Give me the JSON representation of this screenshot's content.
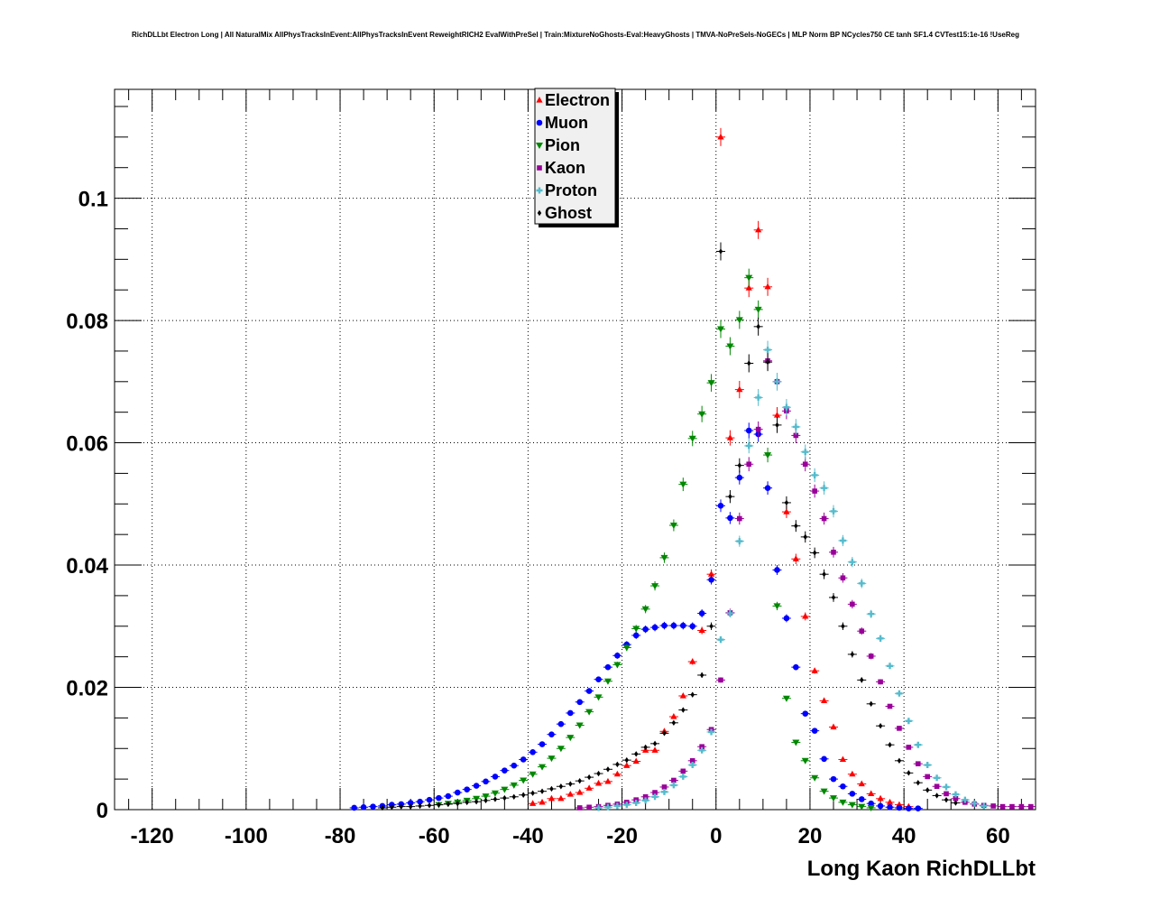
{
  "chart_data": {
    "type": "scatter",
    "title": "RichDLLbt Electron Long | All NaturalMix AllPhysTracksInEvent:AllPhysTracksInEvent ReweightRICH2 EvalWithPreSel | Train:MixtureNoGhosts-Eval:HeavyGhosts | TMVA-NoPreSels-NoGECs | MLP Norm BP NCycles750 CE tanh SF1.4 CVTest15:1e-16 !UseReg",
    "xlabel": "Long Kaon RichDLLbt",
    "ylabel": "",
    "xlim": [
      -128,
      68
    ],
    "ylim": [
      0,
      0.1178
    ],
    "grid": true,
    "legend_position": "top-center",
    "x_ticks": [
      -120,
      -100,
      -80,
      -60,
      -40,
      -20,
      0,
      20,
      40,
      60
    ],
    "x_tick_labels": [
      "-120",
      "-100",
      "-80",
      "-60",
      "-40",
      "-20",
      "0",
      "20",
      "40",
      "60"
    ],
    "y_ticks": [
      0,
      0.02,
      0.04,
      0.06,
      0.08,
      0.1
    ],
    "y_tick_labels": [
      "0",
      "0.02",
      "0.04",
      "0.06",
      "0.08",
      "0.1"
    ],
    "series": [
      {
        "name": "Electron",
        "color": "#ff0000",
        "marker": "triangle-up",
        "points": [
          [
            -39,
            0.001
          ],
          [
            -37,
            0.0012
          ],
          [
            -35,
            0.0018
          ],
          [
            -33,
            0.0018
          ],
          [
            -31,
            0.0025
          ],
          [
            -29,
            0.0028
          ],
          [
            -27,
            0.0035
          ],
          [
            -25,
            0.0043
          ],
          [
            -23,
            0.0046
          ],
          [
            -21,
            0.0058
          ],
          [
            -19,
            0.0072
          ],
          [
            -17,
            0.0079
          ],
          [
            -15,
            0.0097
          ],
          [
            -13,
            0.0097
          ],
          [
            -11,
            0.0128
          ],
          [
            -9,
            0.0152
          ],
          [
            -7,
            0.0186
          ],
          [
            -5,
            0.0242
          ],
          [
            -3,
            0.0293
          ],
          [
            -1,
            0.0385
          ],
          [
            1,
            0.11
          ],
          [
            3,
            0.0608
          ],
          [
            5,
            0.0687
          ],
          [
            7,
            0.0853
          ],
          [
            9,
            0.0948
          ],
          [
            11,
            0.0855
          ],
          [
            13,
            0.0645
          ],
          [
            15,
            0.0487
          ],
          [
            17,
            0.041
          ],
          [
            19,
            0.0316
          ],
          [
            21,
            0.0227
          ],
          [
            23,
            0.0178
          ],
          [
            25,
            0.0135
          ],
          [
            27,
            0.0082
          ],
          [
            29,
            0.0058
          ],
          [
            31,
            0.0042
          ],
          [
            33,
            0.0026
          ],
          [
            35,
            0.0018
          ],
          [
            37,
            0.0012
          ],
          [
            39,
            0.0008
          ],
          [
            41,
            0.0005
          ]
        ]
      },
      {
        "name": "Muon",
        "color": "#0000ff",
        "marker": "circle",
        "points": [
          [
            -77,
            0.0003
          ],
          [
            -75,
            0.0004
          ],
          [
            -73,
            0.0005
          ],
          [
            -71,
            0.0006
          ],
          [
            -69,
            0.0008
          ],
          [
            -67,
            0.0009
          ],
          [
            -65,
            0.0011
          ],
          [
            -63,
            0.0013
          ],
          [
            -61,
            0.0016
          ],
          [
            -59,
            0.0019
          ],
          [
            -57,
            0.0022
          ],
          [
            -55,
            0.0028
          ],
          [
            -53,
            0.0033
          ],
          [
            -51,
            0.0039
          ],
          [
            -49,
            0.0046
          ],
          [
            -47,
            0.0054
          ],
          [
            -45,
            0.0064
          ],
          [
            -43,
            0.0072
          ],
          [
            -41,
            0.0082
          ],
          [
            -39,
            0.0094
          ],
          [
            -37,
            0.0107
          ],
          [
            -35,
            0.0123
          ],
          [
            -33,
            0.014
          ],
          [
            -31,
            0.0158
          ],
          [
            -29,
            0.0176
          ],
          [
            -27,
            0.0194
          ],
          [
            -25,
            0.0213
          ],
          [
            -23,
            0.0233
          ],
          [
            -21,
            0.0252
          ],
          [
            -19,
            0.027
          ],
          [
            -17,
            0.0285
          ],
          [
            -15,
            0.0295
          ],
          [
            -13,
            0.0298
          ],
          [
            -11,
            0.0301
          ],
          [
            -9,
            0.0301
          ],
          [
            -7,
            0.0301
          ],
          [
            -5,
            0.03
          ],
          [
            -3,
            0.0321
          ],
          [
            -1,
            0.0376
          ],
          [
            1,
            0.0497
          ],
          [
            3,
            0.0477
          ],
          [
            5,
            0.0543
          ],
          [
            7,
            0.062
          ],
          [
            9,
            0.0614
          ],
          [
            11,
            0.0526
          ],
          [
            13,
            0.0392
          ],
          [
            15,
            0.0313
          ],
          [
            17,
            0.0233
          ],
          [
            19,
            0.0157
          ],
          [
            21,
            0.0129
          ],
          [
            23,
            0.0083
          ],
          [
            25,
            0.005
          ],
          [
            27,
            0.0038
          ],
          [
            29,
            0.0026
          ],
          [
            31,
            0.0017
          ],
          [
            33,
            0.001
          ],
          [
            35,
            0.0006
          ],
          [
            37,
            0.0004
          ],
          [
            39,
            0.0003
          ],
          [
            41,
            0.0002
          ],
          [
            43,
            0.0002
          ]
        ]
      },
      {
        "name": "Pion",
        "color": "#008800",
        "marker": "triangle-down",
        "points": [
          [
            -59,
            0.0008
          ],
          [
            -57,
            0.001
          ],
          [
            -55,
            0.0012
          ],
          [
            -53,
            0.0015
          ],
          [
            -51,
            0.0018
          ],
          [
            -49,
            0.0022
          ],
          [
            -47,
            0.0027
          ],
          [
            -45,
            0.0033
          ],
          [
            -43,
            0.004
          ],
          [
            -41,
            0.0048
          ],
          [
            -39,
            0.0058
          ],
          [
            -37,
            0.007
          ],
          [
            -35,
            0.0084
          ],
          [
            -33,
            0.01
          ],
          [
            -31,
            0.0118
          ],
          [
            -29,
            0.0138
          ],
          [
            -27,
            0.016
          ],
          [
            -25,
            0.0184
          ],
          [
            -23,
            0.021
          ],
          [
            -21,
            0.0237
          ],
          [
            -19,
            0.0265
          ],
          [
            -17,
            0.0296
          ],
          [
            -15,
            0.0328
          ],
          [
            -13,
            0.0366
          ],
          [
            -11,
            0.0412
          ],
          [
            -9,
            0.0465
          ],
          [
            -7,
            0.0532
          ],
          [
            -5,
            0.0607
          ],
          [
            -3,
            0.0647
          ],
          [
            -1,
            0.0698
          ],
          [
            1,
            0.0786
          ],
          [
            3,
            0.0758
          ],
          [
            5,
            0.0801
          ],
          [
            7,
            0.087
          ],
          [
            9,
            0.0818
          ],
          [
            11,
            0.058
          ],
          [
            13,
            0.0333
          ],
          [
            15,
            0.0182
          ],
          [
            17,
            0.011
          ],
          [
            19,
            0.008
          ],
          [
            21,
            0.0052
          ],
          [
            23,
            0.003
          ],
          [
            25,
            0.0019
          ],
          [
            27,
            0.0012
          ],
          [
            29,
            0.0008
          ],
          [
            31,
            0.0005
          ],
          [
            33,
            0.0003
          ]
        ]
      },
      {
        "name": "Kaon",
        "color": "#990099",
        "marker": "square",
        "points": [
          [
            -29,
            0.0003
          ],
          [
            -27,
            0.0004
          ],
          [
            -25,
            0.0005
          ],
          [
            -23,
            0.0007
          ],
          [
            -21,
            0.0009
          ],
          [
            -19,
            0.0012
          ],
          [
            -17,
            0.0016
          ],
          [
            -15,
            0.0021
          ],
          [
            -13,
            0.0028
          ],
          [
            -11,
            0.0037
          ],
          [
            -9,
            0.0048
          ],
          [
            -7,
            0.0063
          ],
          [
            -5,
            0.008
          ],
          [
            -3,
            0.0103
          ],
          [
            -1,
            0.0131
          ],
          [
            1,
            0.0212
          ],
          [
            3,
            0.0322
          ],
          [
            5,
            0.0476
          ],
          [
            7,
            0.0565
          ],
          [
            9,
            0.0622
          ],
          [
            11,
            0.0734
          ],
          [
            13,
            0.07
          ],
          [
            15,
            0.0652
          ],
          [
            17,
            0.0612
          ],
          [
            19,
            0.0565
          ],
          [
            21,
            0.0521
          ],
          [
            23,
            0.0476
          ],
          [
            25,
            0.0421
          ],
          [
            27,
            0.0379
          ],
          [
            29,
            0.0336
          ],
          [
            31,
            0.0292
          ],
          [
            33,
            0.0251
          ],
          [
            35,
            0.0209
          ],
          [
            37,
            0.0169
          ],
          [
            39,
            0.0133
          ],
          [
            41,
            0.0102
          ],
          [
            43,
            0.0075
          ],
          [
            45,
            0.0054
          ],
          [
            47,
            0.0038
          ],
          [
            49,
            0.0026
          ],
          [
            51,
            0.0018
          ],
          [
            53,
            0.0012
          ],
          [
            55,
            0.0009
          ],
          [
            57,
            0.0007
          ],
          [
            59,
            0.0006
          ],
          [
            61,
            0.0005
          ],
          [
            63,
            0.0005
          ],
          [
            65,
            0.0005
          ],
          [
            67,
            0.0005
          ]
        ]
      },
      {
        "name": "Proton",
        "color": "#55bbcc",
        "marker": "cross",
        "points": [
          [
            -25,
            0.0003
          ],
          [
            -23,
            0.0004
          ],
          [
            -21,
            0.0006
          ],
          [
            -19,
            0.0008
          ],
          [
            -17,
            0.0011
          ],
          [
            -15,
            0.0015
          ],
          [
            -13,
            0.0021
          ],
          [
            -11,
            0.0029
          ],
          [
            -9,
            0.004
          ],
          [
            -7,
            0.0054
          ],
          [
            -5,
            0.0073
          ],
          [
            -3,
            0.0097
          ],
          [
            -1,
            0.0127
          ],
          [
            1,
            0.0278
          ],
          [
            3,
            0.0321
          ],
          [
            5,
            0.0439
          ],
          [
            7,
            0.0595
          ],
          [
            9,
            0.0674
          ],
          [
            11,
            0.0752
          ],
          [
            13,
            0.07
          ],
          [
            15,
            0.0658
          ],
          [
            17,
            0.0626
          ],
          [
            19,
            0.0585
          ],
          [
            21,
            0.0547
          ],
          [
            23,
            0.0526
          ],
          [
            25,
            0.0488
          ],
          [
            27,
            0.044
          ],
          [
            29,
            0.0405
          ],
          [
            31,
            0.037
          ],
          [
            33,
            0.032
          ],
          [
            35,
            0.028
          ],
          [
            37,
            0.0235
          ],
          [
            39,
            0.019
          ],
          [
            41,
            0.0145
          ],
          [
            43,
            0.0106
          ],
          [
            45,
            0.0073
          ],
          [
            47,
            0.0052
          ],
          [
            49,
            0.0037
          ],
          [
            51,
            0.0025
          ],
          [
            53,
            0.0016
          ],
          [
            55,
            0.001
          ],
          [
            57,
            0.0006
          ]
        ]
      },
      {
        "name": "Ghost",
        "color": "#000000",
        "marker": "diamond",
        "points": [
          [
            -71,
            0.0003
          ],
          [
            -69,
            0.0004
          ],
          [
            -67,
            0.0005
          ],
          [
            -65,
            0.0005
          ],
          [
            -63,
            0.0006
          ],
          [
            -61,
            0.0007
          ],
          [
            -59,
            0.0008
          ],
          [
            -57,
            0.0009
          ],
          [
            -55,
            0.001
          ],
          [
            -53,
            0.0012
          ],
          [
            -51,
            0.0013
          ],
          [
            -49,
            0.0015
          ],
          [
            -47,
            0.0017
          ],
          [
            -45,
            0.0019
          ],
          [
            -43,
            0.0021
          ],
          [
            -41,
            0.0024
          ],
          [
            -39,
            0.0027
          ],
          [
            -37,
            0.003
          ],
          [
            -35,
            0.0034
          ],
          [
            -33,
            0.0038
          ],
          [
            -31,
            0.0042
          ],
          [
            -29,
            0.0047
          ],
          [
            -27,
            0.0053
          ],
          [
            -25,
            0.0059
          ],
          [
            -23,
            0.0066
          ],
          [
            -21,
            0.0074
          ],
          [
            -19,
            0.0081
          ],
          [
            -17,
            0.0091
          ],
          [
            -15,
            0.0102
          ],
          [
            -13,
            0.0108
          ],
          [
            -11,
            0.0125
          ],
          [
            -9,
            0.0142
          ],
          [
            -7,
            0.0163
          ],
          [
            -5,
            0.0188
          ],
          [
            -3,
            0.022
          ],
          [
            -1,
            0.03
          ],
          [
            1,
            0.0913
          ],
          [
            3,
            0.0512
          ],
          [
            5,
            0.0563
          ],
          [
            7,
            0.073
          ],
          [
            9,
            0.079
          ],
          [
            11,
            0.0732
          ],
          [
            13,
            0.0629
          ],
          [
            15,
            0.0502
          ],
          [
            17,
            0.0464
          ],
          [
            19,
            0.0446
          ],
          [
            21,
            0.042
          ],
          [
            23,
            0.0385
          ],
          [
            25,
            0.0347
          ],
          [
            27,
            0.03
          ],
          [
            29,
            0.0254
          ],
          [
            31,
            0.0212
          ],
          [
            33,
            0.0173
          ],
          [
            35,
            0.0137
          ],
          [
            37,
            0.0106
          ],
          [
            39,
            0.008
          ],
          [
            41,
            0.006
          ],
          [
            43,
            0.0044
          ],
          [
            45,
            0.0032
          ],
          [
            47,
            0.0023
          ],
          [
            49,
            0.0016
          ],
          [
            51,
            0.0011
          ]
        ]
      }
    ]
  }
}
